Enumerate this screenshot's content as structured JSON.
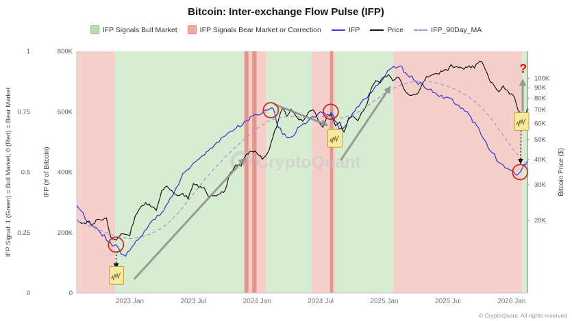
{
  "title": "Bitcoin: Inter-exchange Flow Pulse (IFP)",
  "watermark": {
    "text": "CryptoQuant"
  },
  "copyright": "© CryptoQuant. All rights reserved",
  "colors": {
    "bull_band": "#d8ecd1",
    "bear_band": "#f6cfca",
    "bear_band_dark": "#e2978c",
    "trend_arrow": "#8b8f8a",
    "signal_circle": "#cf2a24",
    "annotation": "#111111",
    "mini_fill": "#f8e9a2",
    "mini_border": "#bfa23a",
    "question": "#e01010",
    "axis_text": "#555555",
    "watermark": "#c7c7c7"
  },
  "legend": {
    "items": [
      {
        "key": "bull",
        "label": "IFP Signals Bull Market",
        "type": "box",
        "color": "#b6dfad",
        "border": "#8cc884"
      },
      {
        "key": "bear",
        "label": "IFP Signals Bear Market or Correction",
        "type": "box",
        "color": "#f2aaa5",
        "border": "#e08880"
      },
      {
        "key": "ifp",
        "label": "IFP",
        "type": "line",
        "color": "#3d3ddb"
      },
      {
        "key": "price",
        "label": "Price",
        "type": "line",
        "color": "#151515"
      },
      {
        "key": "ma",
        "label": "IFP_90Day_MA",
        "type": "dash",
        "color": "#8f98c4"
      }
    ]
  },
  "chart_data": {
    "type": "line",
    "x_axis": {
      "unit": "months since 2022-08",
      "range": [
        0,
        42.5
      ],
      "ticks": [
        {
          "m": 5,
          "label": "2023 Jan"
        },
        {
          "m": 11,
          "label": "2023 Jul"
        },
        {
          "m": 17,
          "label": "2024 Jan"
        },
        {
          "m": 23,
          "label": "2024 Jul"
        },
        {
          "m": 29,
          "label": "2025 Jan"
        },
        {
          "m": 35,
          "label": "2025 Jul"
        },
        {
          "m": 41,
          "label": "2026 Jan"
        }
      ]
    },
    "y_left_signal": {
      "label": "IFP Signal: 1 (Green) = Bull Market, 0 (Red) = Bear Market",
      "range": [
        0,
        1
      ],
      "ticks": [
        {
          "v": 0,
          "label": "0"
        },
        {
          "v": 0.25,
          "label": "0.25"
        },
        {
          "v": 0.5,
          "label": "0.5"
        },
        {
          "v": 0.75,
          "label": "0.75"
        },
        {
          "v": 1,
          "label": "1"
        }
      ]
    },
    "y_left_ifp": {
      "label": "IFP (# of Bitcoin)",
      "range_k": [
        0,
        800
      ],
      "ticks": [
        {
          "v": 0,
          "label": "0"
        },
        {
          "v": 200,
          "label": "200K"
        },
        {
          "v": 400,
          "label": "400K"
        },
        {
          "v": 600,
          "label": "600K"
        },
        {
          "v": 800,
          "label": "800K"
        }
      ]
    },
    "y_right_price": {
      "label": "Bitcoin Price ($)",
      "scale": "log",
      "range_k": [
        8.8,
        136
      ],
      "ticks": [
        {
          "v": 20,
          "label": "20K"
        },
        {
          "v": 30,
          "label": "30K"
        },
        {
          "v": 40,
          "label": "40K"
        },
        {
          "v": 50,
          "label": "50K"
        },
        {
          "v": 60,
          "label": "60K"
        },
        {
          "v": 70,
          "label": "70K"
        },
        {
          "v": 80,
          "label": "80K"
        },
        {
          "v": 90,
          "label": "90K"
        },
        {
          "v": 100,
          "label": "100K"
        }
      ]
    },
    "bands": [
      {
        "kind": "bear",
        "from": 0,
        "to": 3.62
      },
      {
        "kind": "bull",
        "from": 3.62,
        "to": 15.76
      },
      {
        "kind": "bear",
        "from": 15.76,
        "to": 17.9
      },
      {
        "kind": "bull",
        "from": 17.9,
        "to": 22.16
      },
      {
        "kind": "bear",
        "from": 22.16,
        "to": 24.35
      },
      {
        "kind": "bull",
        "from": 24.35,
        "to": 29.85
      },
      {
        "kind": "bear",
        "from": 29.85,
        "to": 41.99
      },
      {
        "kind": "bull",
        "from": 41.99,
        "to": 42.5
      }
    ],
    "band_stripes": [
      {
        "from": 15.82,
        "to": 16.2
      },
      {
        "from": 16.55,
        "to": 16.95
      },
      {
        "from": 23.88,
        "to": 24.18
      }
    ],
    "series": [
      {
        "key": "ifp",
        "name": "IFP",
        "axis": "ifp",
        "style": "solid",
        "color": "#3d3ddb",
        "width": 1.3,
        "noise_k": 9,
        "points": [
          [
            0,
            290
          ],
          [
            1,
            235
          ],
          [
            2,
            210
          ],
          [
            3,
            168
          ],
          [
            3.7,
            160
          ],
          [
            4.2,
            128
          ],
          [
            4.6,
            122
          ],
          [
            5,
            140
          ],
          [
            6,
            185
          ],
          [
            7,
            235
          ],
          [
            8,
            265
          ],
          [
            9,
            320
          ],
          [
            10,
            395
          ],
          [
            11,
            430
          ],
          [
            12,
            455
          ],
          [
            13,
            490
          ],
          [
            14,
            520
          ],
          [
            15,
            545
          ],
          [
            16,
            570
          ],
          [
            17,
            590
          ],
          [
            18,
            605
          ],
          [
            18.5,
            612
          ],
          [
            19,
            548
          ],
          [
            19.8,
            515
          ],
          [
            20.5,
            522
          ],
          [
            21,
            550
          ],
          [
            22,
            578
          ],
          [
            23,
            600
          ],
          [
            23.5,
            588
          ],
          [
            24,
            598
          ],
          [
            24.7,
            545
          ],
          [
            25.3,
            552
          ],
          [
            26,
            595
          ],
          [
            27,
            640
          ],
          [
            28,
            675
          ],
          [
            29,
            715
          ],
          [
            29.7,
            745
          ],
          [
            30.5,
            752
          ],
          [
            31,
            730
          ],
          [
            32,
            700
          ],
          [
            33,
            675
          ],
          [
            34,
            655
          ],
          [
            35,
            648
          ],
          [
            36,
            622
          ],
          [
            37,
            590
          ],
          [
            37.7,
            555
          ],
          [
            38.5,
            505
          ],
          [
            39,
            470
          ],
          [
            40,
            428
          ],
          [
            41,
            405
          ],
          [
            41.5,
            390
          ],
          [
            42,
            412
          ],
          [
            42.5,
            438
          ]
        ]
      },
      {
        "key": "price",
        "name": "Price",
        "axis": "price",
        "style": "solid",
        "color": "#151515",
        "width": 1.2,
        "noise_pct": 2.2,
        "points": [
          [
            0,
            20.2
          ],
          [
            0.5,
            19.3
          ],
          [
            1,
            19.8
          ],
          [
            1.5,
            19.2
          ],
          [
            2,
            20.3
          ],
          [
            2.8,
            20.6
          ],
          [
            3.2,
            16.6
          ],
          [
            3.7,
            16.0
          ],
          [
            4.2,
            17.2
          ],
          [
            5,
            16.8
          ],
          [
            5.5,
            21.0
          ],
          [
            6,
            23.2
          ],
          [
            6.5,
            24.5
          ],
          [
            7,
            23.3
          ],
          [
            7.5,
            22.4
          ],
          [
            8,
            28.0
          ],
          [
            8.5,
            29.5
          ],
          [
            9,
            28.0
          ],
          [
            9.5,
            26.5
          ],
          [
            10,
            27.2
          ],
          [
            10.5,
            25.5
          ],
          [
            11,
            30.4
          ],
          [
            11.5,
            29.2
          ],
          [
            12,
            29.0
          ],
          [
            12.5,
            26.0
          ],
          [
            13,
            26.5
          ],
          [
            13.5,
            27.0
          ],
          [
            14,
            28.3
          ],
          [
            14.5,
            34.5
          ],
          [
            15,
            37.5
          ],
          [
            15.5,
            37.0
          ],
          [
            16,
            42.5
          ],
          [
            16.5,
            43.8
          ],
          [
            17,
            42.8
          ],
          [
            17.5,
            40.0
          ],
          [
            18,
            43.0
          ],
          [
            18.5,
            51.5
          ],
          [
            19,
            62.0
          ],
          [
            19.4,
            71.5
          ],
          [
            19.8,
            65.0
          ],
          [
            20.2,
            70.5
          ],
          [
            20.8,
            64.0
          ],
          [
            21.3,
            61.5
          ],
          [
            21.8,
            67.5
          ],
          [
            22.3,
            70.0
          ],
          [
            22.8,
            61.5
          ],
          [
            23.2,
            57.5
          ],
          [
            23.6,
            65.0
          ],
          [
            24,
            66.5
          ],
          [
            24.4,
            58.5
          ],
          [
            24.8,
            61.0
          ],
          [
            25.2,
            54.5
          ],
          [
            25.6,
            63.0
          ],
          [
            26,
            65.5
          ],
          [
            26.5,
            62.0
          ],
          [
            27,
            69.0
          ],
          [
            27.4,
            75.5
          ],
          [
            27.8,
            90.0
          ],
          [
            28.2,
            97.5
          ],
          [
            28.6,
            95.0
          ],
          [
            29,
            102.0
          ],
          [
            29.4,
            104.5
          ],
          [
            29.8,
            97.5
          ],
          [
            30.2,
            101.5
          ],
          [
            30.6,
            96.0
          ],
          [
            31,
            86.0
          ],
          [
            31.4,
            82.5
          ],
          [
            31.8,
            83.5
          ],
          [
            32.2,
            85.0
          ],
          [
            32.6,
            94.5
          ],
          [
            33,
            102.5
          ],
          [
            33.5,
            104.0
          ],
          [
            34,
            105.5
          ],
          [
            34.5,
            108.0
          ],
          [
            35,
            109.5
          ],
          [
            35.3,
            117.0
          ],
          [
            35.7,
            114.0
          ],
          [
            36,
            113.0
          ],
          [
            36.5,
            111.0
          ],
          [
            37,
            115.5
          ],
          [
            37.5,
            112.5
          ],
          [
            38,
            121.5
          ],
          [
            38.3,
            118.0
          ],
          [
            38.7,
            106.0
          ],
          [
            39,
            96.0
          ],
          [
            39.4,
            91.5
          ],
          [
            39.8,
            86.0
          ],
          [
            40.2,
            92.0
          ],
          [
            40.6,
            87.5
          ],
          [
            41,
            84.0
          ],
          [
            41.3,
            80.0
          ],
          [
            41.6,
            70.0
          ],
          [
            42,
            67.5
          ],
          [
            42.2,
            64.5
          ],
          [
            42.5,
            71.5
          ]
        ]
      },
      {
        "key": "ma",
        "name": "IFP_90Day_MA",
        "axis": "ifp",
        "style": "dashed",
        "color": "#97a0cc",
        "width": 1.3,
        "points": [
          [
            0,
            240
          ],
          [
            1,
            224
          ],
          [
            2,
            210
          ],
          [
            3,
            197
          ],
          [
            4,
            186
          ],
          [
            5,
            180
          ],
          [
            6,
            184
          ],
          [
            7,
            196
          ],
          [
            8,
            214
          ],
          [
            9,
            243
          ],
          [
            10,
            283
          ],
          [
            11,
            328
          ],
          [
            12,
            373
          ],
          [
            13,
            413
          ],
          [
            14,
            450
          ],
          [
            15,
            484
          ],
          [
            16,
            515
          ],
          [
            17,
            544
          ],
          [
            18,
            568
          ],
          [
            19,
            580
          ],
          [
            20,
            585
          ],
          [
            21,
            582
          ],
          [
            22,
            579
          ],
          [
            23,
            583
          ],
          [
            24,
            585
          ],
          [
            25,
            580
          ],
          [
            26,
            589
          ],
          [
            27,
            608
          ],
          [
            28,
            634
          ],
          [
            29,
            660
          ],
          [
            30,
            680
          ],
          [
            31,
            694
          ],
          [
            32,
            701
          ],
          [
            33,
            701
          ],
          [
            34,
            695
          ],
          [
            35,
            684
          ],
          [
            36,
            669
          ],
          [
            37,
            649
          ],
          [
            38,
            620
          ],
          [
            39,
            581
          ],
          [
            40,
            532
          ],
          [
            41,
            482
          ],
          [
            42,
            440
          ],
          [
            42.5,
            424
          ]
        ]
      }
    ],
    "annotations": {
      "trend_arrows": [
        {
          "from": [
            5.4,
            45
          ],
          "to": [
            15.85,
            445
          ]
        },
        {
          "from": [
            18.6,
            625
          ],
          "to": [
            23.6,
            556
          ]
        },
        {
          "from": [
            24.9,
            440
          ],
          "to": [
            29.55,
            682
          ]
        },
        {
          "from": [
            42.05,
            600
          ],
          "to": [
            42.05,
            705
          ]
        }
      ],
      "dotted_arrows": [
        {
          "from": [
            3.72,
            138
          ],
          "to": [
            3.72,
            84
          ]
        },
        {
          "from": [
            41.9,
            538
          ],
          "to": [
            41.85,
            430
          ]
        }
      ],
      "signal_circles": [
        {
          "m": 3.7,
          "v": 160,
          "r": 11
        },
        {
          "m": 18.3,
          "v": 605,
          "r": 11
        },
        {
          "m": 23.95,
          "v": 600,
          "r": 11
        },
        {
          "m": 41.8,
          "v": 400,
          "r": 11
        }
      ],
      "mini_chart_markers": [
        {
          "m": 3.75,
          "v": 58
        },
        {
          "m": 24.35,
          "v": 512
        },
        {
          "m": 41.95,
          "v": 568
        }
      ],
      "question_mark": {
        "m": 42.1,
        "v_k": 742,
        "text": "?"
      }
    }
  }
}
